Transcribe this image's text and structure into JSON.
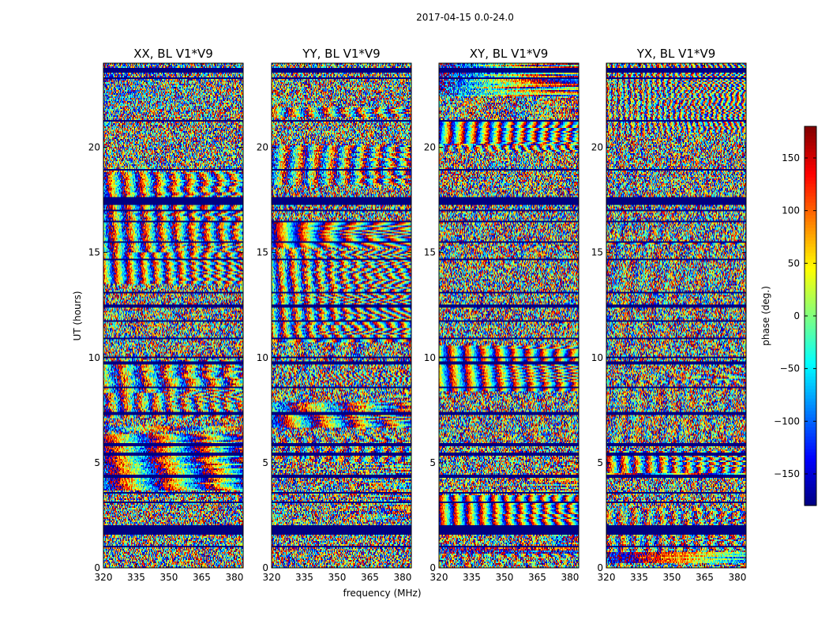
{
  "chart_data": {
    "type": "heatmap",
    "suptitle": "2017-04-15 0.0-24.0",
    "xlabel": "frequency (MHz)",
    "ylabel": "UT (hours)",
    "xlim": [
      320,
      384
    ],
    "ylim": [
      0,
      24
    ],
    "x_ticks": [
      320,
      335,
      350,
      365,
      380
    ],
    "x_tick_labels": [
      "320",
      "335",
      "350",
      "365",
      "380"
    ],
    "y_ticks": [
      0,
      5,
      10,
      15,
      20
    ],
    "y_tick_labels": [
      "0",
      "5",
      "10",
      "15",
      "20"
    ],
    "panels": [
      {
        "title": "XX, BL V1*V9",
        "seed": 11
      },
      {
        "title": "YY, BL V1*V9",
        "seed": 23
      },
      {
        "title": "XY, BL V1*V9",
        "seed": 37
      },
      {
        "title": "YX, BL V1*V9",
        "seed": 53
      }
    ],
    "flagged_hours": [
      [
        0.95,
        1.08
      ],
      [
        1.55,
        2.05
      ],
      [
        3.05,
        3.15
      ],
      [
        3.5,
        3.6
      ],
      [
        4.3,
        4.4
      ],
      [
        5.0,
        5.05
      ],
      [
        5.35,
        5.45
      ],
      [
        5.75,
        5.95
      ],
      [
        7.3,
        7.4
      ],
      [
        8.3,
        8.35
      ],
      [
        8.55,
        8.65
      ],
      [
        9.7,
        9.85
      ],
      [
        9.95,
        10.05
      ],
      [
        10.85,
        10.95
      ],
      [
        11.7,
        11.8
      ],
      [
        12.4,
        12.5
      ],
      [
        13.05,
        13.15
      ],
      [
        14.6,
        14.7
      ],
      [
        15.45,
        15.55
      ],
      [
        16.4,
        16.5
      ],
      [
        16.95,
        17.05
      ],
      [
        17.25,
        17.6
      ],
      [
        18.9,
        19.0
      ],
      [
        21.2,
        21.3
      ],
      [
        23.25,
        23.35
      ],
      [
        23.55,
        23.75
      ]
    ],
    "colorbar": {
      "label": "phase (deg.)",
      "range": [
        -180,
        180
      ],
      "ticks": [
        -150,
        -100,
        -50,
        0,
        50,
        100,
        150
      ],
      "tick_labels": [
        "−150",
        "−100",
        "−50",
        "0",
        "50",
        "100",
        "150"
      ],
      "colormap": "jet"
    }
  }
}
